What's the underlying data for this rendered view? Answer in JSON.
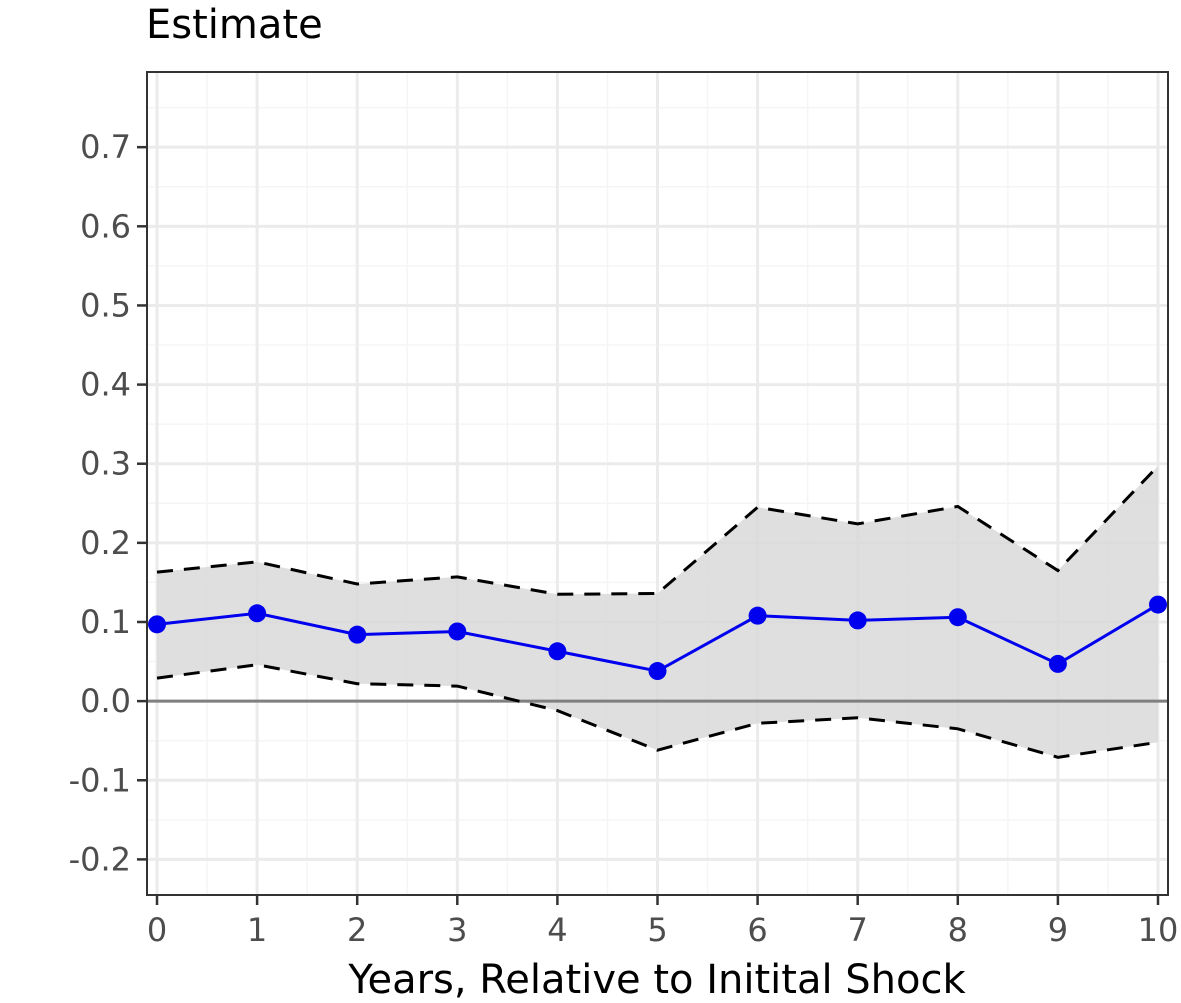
{
  "chart_data": {
    "type": "line",
    "title": "Estimate",
    "xlabel": "Years, Relative to Initital Shock",
    "ylabel": "",
    "x": [
      0,
      1,
      2,
      3,
      4,
      5,
      6,
      7,
      8,
      9,
      10
    ],
    "xlim": [
      -0.1,
      10.1
    ],
    "ylim": [
      -0.245,
      0.795
    ],
    "x_ticks": [
      "0",
      "1",
      "2",
      "3",
      "4",
      "5",
      "6",
      "7",
      "8",
      "9",
      "10"
    ],
    "y_ticks": [
      "-0.2",
      "-0.1",
      "0.0",
      "0.1",
      "0.2",
      "0.3",
      "0.4",
      "0.5",
      "0.6",
      "0.7"
    ],
    "y_tick_values": [
      -0.2,
      -0.1,
      0.0,
      0.1,
      0.2,
      0.3,
      0.4,
      0.5,
      0.6,
      0.7
    ],
    "grid": true,
    "reference_line": 0.0,
    "series": [
      {
        "values": [
          0.097,
          0.111,
          0.084,
          0.088,
          0.063,
          0.038,
          0.108,
          0.102,
          0.106,
          0.047,
          0.122
        ]
      },
      {
        "values": [
          0.163,
          0.176,
          0.148,
          0.157,
          0.135,
          0.136,
          0.245,
          0.224,
          0.246,
          0.165,
          0.297
        ]
      },
      {
        "values": [
          0.029,
          0.046,
          0.022,
          0.019,
          -0.012,
          -0.062,
          -0.028,
          -0.021,
          -0.035,
          -0.071,
          -0.052
        ]
      }
    ],
    "colors": {
      "estimate": "#0000ee",
      "band_fill": "#d9d9d9",
      "band_edge": "#000000",
      "zero_line": "#7f7f7f",
      "grid_major": "#ebebeb",
      "grid_minor": "#f5f5f5",
      "panel_border": "#333333"
    }
  }
}
